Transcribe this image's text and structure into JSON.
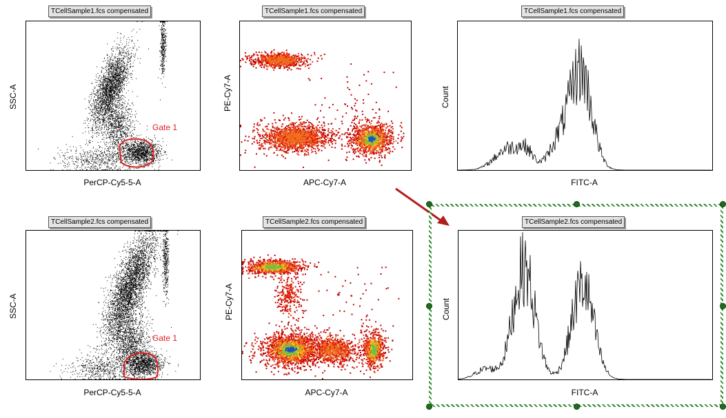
{
  "colors": {
    "dot": "#000000",
    "gate": "#e01e1e",
    "arrow": "#b01e1e",
    "selection": "#2e8b2e",
    "density_low": "#d01010",
    "density_mid": "#f0c020",
    "density_high": "#2050c0"
  },
  "chart_data": [
    {
      "type": "scatter",
      "title": "TCellSample1.fcs compensated",
      "xlabel": "PerCP-Cy5-5-A",
      "ylabel": "SSC-A",
      "gate_label": "Gate 1",
      "grid": false
    },
    {
      "type": "heatmap",
      "title": "TCellSample1.fcs compensated",
      "xlabel": "APC-Cy7-A",
      "ylabel": "PE-Cy7-A",
      "grid": false
    },
    {
      "type": "histogram",
      "title": "TCellSample1.fcs compensated",
      "xlabel": "FITC-A",
      "ylabel": "Count",
      "grid": false
    },
    {
      "type": "scatter",
      "title": "TCellSample2.fcs compensated",
      "xlabel": "PerCP-Cy5-5-A",
      "ylabel": "SSC-A",
      "gate_label": "Gate 1",
      "grid": false
    },
    {
      "type": "heatmap",
      "title": "TCellSample2.fcs compensated",
      "xlabel": "APC-Cy7-A",
      "ylabel": "PE-Cy7-A",
      "grid": false
    },
    {
      "type": "histogram",
      "title": "TCellSample2.fcs compensated",
      "xlabel": "FITC-A",
      "ylabel": "Count",
      "grid": false,
      "selected": true
    }
  ]
}
